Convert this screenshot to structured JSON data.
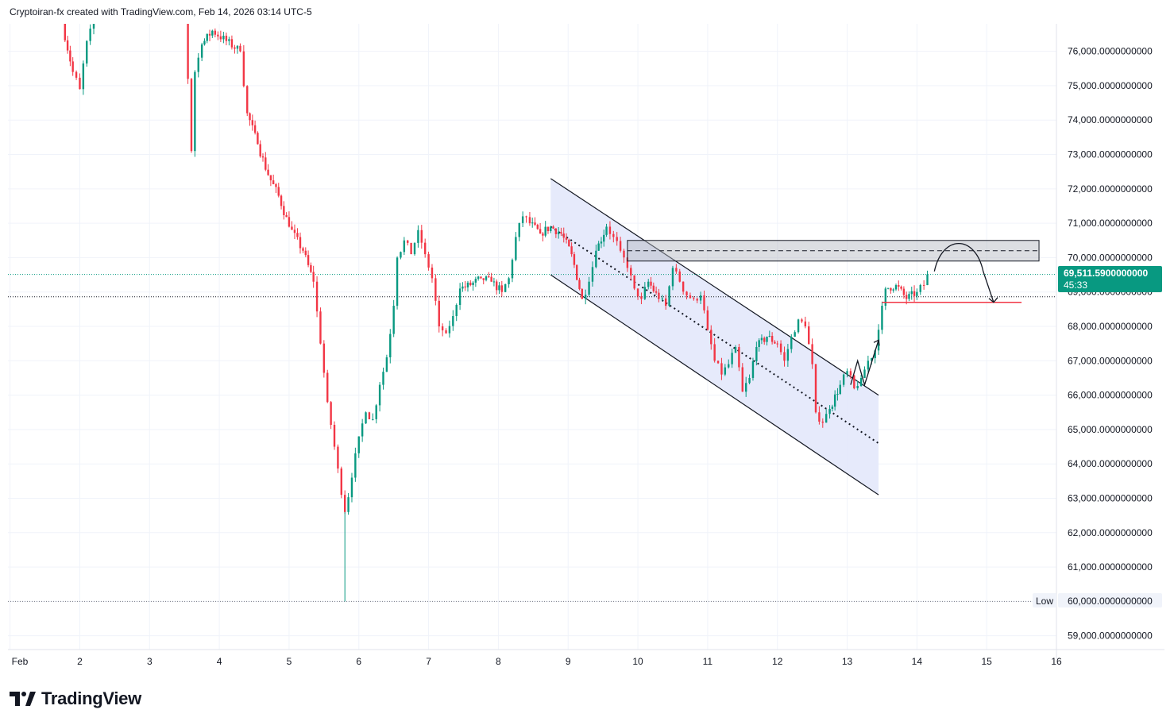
{
  "header": {
    "attribution": "Cryptoiran-fx created with TradingView.com, Feb 14, 2026 03:14 UTC-5"
  },
  "branding": {
    "logo_text": "TradingView"
  },
  "price_badge": {
    "price": "69,511.5900000000",
    "countdown": "45:33",
    "color": "#089981"
  },
  "low_badge": {
    "label": "Low",
    "value": "60,000.0000000000"
  },
  "colors": {
    "up": "#089981",
    "down": "#f23645",
    "channel_fill": "#e3e8fb",
    "zone_fill": "#d1d4dc",
    "support_line": "#f23645"
  },
  "chart_data": {
    "type": "candlestick",
    "y_unit": "USD",
    "ylim": [
      58600,
      76800
    ],
    "xlim": [
      0.97,
      16.0
    ],
    "grid": true,
    "y_ticks": [
      {
        "value": 59000,
        "label": "59,000.0000000000"
      },
      {
        "value": 60000,
        "label": "60,000.0000000000"
      },
      {
        "value": 61000,
        "label": "61,000.0000000000"
      },
      {
        "value": 62000,
        "label": "62,000.0000000000"
      },
      {
        "value": 63000,
        "label": "63,000.0000000000"
      },
      {
        "value": 64000,
        "label": "64,000.0000000000"
      },
      {
        "value": 65000,
        "label": "65,000.0000000000"
      },
      {
        "value": 66000,
        "label": "66,000.0000000000"
      },
      {
        "value": 67000,
        "label": "67,000.0000000000"
      },
      {
        "value": 68000,
        "label": "68,000.0000000000"
      },
      {
        "value": 69000,
        "label": "69,000.0000000000"
      },
      {
        "value": 70000,
        "label": "70,000.0000000000"
      },
      {
        "value": 71000,
        "label": "71,000.0000000000"
      },
      {
        "value": 72000,
        "label": "72,000.0000000000"
      },
      {
        "value": 73000,
        "label": "73,000.0000000000"
      },
      {
        "value": 74000,
        "label": "74,000.0000000000"
      },
      {
        "value": 75000,
        "label": "75,000.0000000000"
      },
      {
        "value": 76000,
        "label": "76,000.0000000000"
      }
    ],
    "x_ticks": [
      {
        "value": 1.0,
        "label": "Feb"
      },
      {
        "value": 2,
        "label": "2"
      },
      {
        "value": 3,
        "label": "3"
      },
      {
        "value": 4,
        "label": "4"
      },
      {
        "value": 5,
        "label": "5"
      },
      {
        "value": 6,
        "label": "6"
      },
      {
        "value": 7,
        "label": "7"
      },
      {
        "value": 8,
        "label": "8"
      },
      {
        "value": 9,
        "label": "9"
      },
      {
        "value": 10,
        "label": "10"
      },
      {
        "value": 11,
        "label": "11"
      },
      {
        "value": 12,
        "label": "12"
      },
      {
        "value": 13,
        "label": "13"
      },
      {
        "value": 14,
        "label": "14"
      },
      {
        "value": 15,
        "label": "15"
      },
      {
        "value": 16,
        "label": "16"
      }
    ],
    "price_path": [
      [
        1.75,
        76800
      ],
      [
        1.9,
        75400
      ],
      [
        2.0,
        74900
      ],
      [
        2.1,
        76300
      ],
      [
        2.2,
        76800
      ],
      [
        3.5,
        76800
      ],
      [
        3.55,
        75200
      ],
      [
        3.6,
        73100
      ],
      [
        3.65,
        75400
      ],
      [
        3.75,
        76200
      ],
      [
        3.9,
        76600
      ],
      [
        4.1,
        76300
      ],
      [
        4.3,
        76000
      ],
      [
        4.4,
        74200
      ],
      [
        4.55,
        73300
      ],
      [
        4.7,
        72400
      ],
      [
        4.85,
        71800
      ],
      [
        5.0,
        70900
      ],
      [
        5.2,
        70200
      ],
      [
        5.35,
        69300
      ],
      [
        5.45,
        67500
      ],
      [
        5.55,
        65800
      ],
      [
        5.65,
        64500
      ],
      [
        5.75,
        63100
      ],
      [
        5.8,
        62600
      ],
      [
        5.9,
        63600
      ],
      [
        6.0,
        64800
      ],
      [
        6.1,
        65500
      ],
      [
        6.2,
        65300
      ],
      [
        6.3,
        66300
      ],
      [
        6.4,
        67100
      ],
      [
        6.5,
        68600
      ],
      [
        6.55,
        70000
      ],
      [
        6.65,
        70500
      ],
      [
        6.75,
        70100
      ],
      [
        6.85,
        70800
      ],
      [
        6.95,
        70100
      ],
      [
        7.05,
        69400
      ],
      [
        7.15,
        68000
      ],
      [
        7.25,
        67800
      ],
      [
        7.35,
        68300
      ],
      [
        7.45,
        69100
      ],
      [
        7.6,
        69200
      ],
      [
        7.75,
        69400
      ],
      [
        7.9,
        69300
      ],
      [
        8.05,
        69000
      ],
      [
        8.15,
        69400
      ],
      [
        8.25,
        70600
      ],
      [
        8.35,
        71200
      ],
      [
        8.45,
        71000
      ],
      [
        8.6,
        70700
      ],
      [
        8.75,
        70900
      ],
      [
        8.9,
        70700
      ],
      [
        9.05,
        70100
      ],
      [
        9.2,
        68800
      ],
      [
        9.3,
        69300
      ],
      [
        9.4,
        70200
      ],
      [
        9.55,
        70900
      ],
      [
        9.65,
        70600
      ],
      [
        9.75,
        70200
      ],
      [
        9.85,
        69700
      ],
      [
        9.95,
        69100
      ],
      [
        10.05,
        68800
      ],
      [
        10.15,
        69300
      ],
      [
        10.3,
        68800
      ],
      [
        10.4,
        68600
      ],
      [
        10.5,
        69700
      ],
      [
        10.6,
        69300
      ],
      [
        10.7,
        68900
      ],
      [
        10.8,
        68800
      ],
      [
        10.9,
        68900
      ],
      [
        11.0,
        67900
      ],
      [
        11.1,
        67000
      ],
      [
        11.2,
        66600
      ],
      [
        11.3,
        66900
      ],
      [
        11.4,
        67400
      ],
      [
        11.5,
        66100
      ],
      [
        11.6,
        66500
      ],
      [
        11.7,
        67400
      ],
      [
        11.85,
        67700
      ],
      [
        12.0,
        67500
      ],
      [
        12.1,
        67000
      ],
      [
        12.2,
        67700
      ],
      [
        12.3,
        68200
      ],
      [
        12.4,
        68000
      ],
      [
        12.5,
        66900
      ],
      [
        12.55,
        65500
      ],
      [
        12.65,
        65200
      ],
      [
        12.75,
        65600
      ],
      [
        12.9,
        66300
      ],
      [
        13.0,
        66700
      ],
      [
        13.1,
        66200
      ],
      [
        13.2,
        66500
      ],
      [
        13.3,
        67000
      ],
      [
        13.4,
        67300
      ],
      [
        13.45,
        67900
      ],
      [
        13.5,
        68600
      ],
      [
        13.55,
        69100
      ],
      [
        13.7,
        69200
      ],
      [
        13.85,
        68800
      ],
      [
        14.0,
        69000
      ],
      [
        14.1,
        69200
      ],
      [
        14.15,
        69510
      ]
    ],
    "annotations": {
      "descending_channel": {
        "upper": [
          [
            8.75,
            72300
          ],
          [
            13.45,
            66000
          ]
        ],
        "lower": [
          [
            8.75,
            69500
          ],
          [
            13.45,
            63100
          ]
        ],
        "median_dotted": [
          [
            8.75,
            70900
          ],
          [
            13.45,
            64600
          ]
        ]
      },
      "resistance_zone": {
        "x": [
          9.85,
          15.75
        ],
        "y_low": 69900,
        "y_high": 70500,
        "dashed_mid": 70200
      },
      "support_line": {
        "x": [
          13.5,
          15.5
        ],
        "y": 68700
      },
      "breakout_arrow": [
        [
          13.05,
          66300
        ],
        [
          13.15,
          67000
        ],
        [
          13.25,
          66300
        ],
        [
          13.45,
          67600
        ]
      ],
      "projection_arrow": [
        [
          14.25,
          69600
        ],
        [
          14.6,
          70450
        ],
        [
          14.95,
          69600
        ],
        [
          15.1,
          68700
        ]
      ],
      "low_level": 60000,
      "current_price_level": 69511.59,
      "dotted_reference_level": 68860
    }
  }
}
